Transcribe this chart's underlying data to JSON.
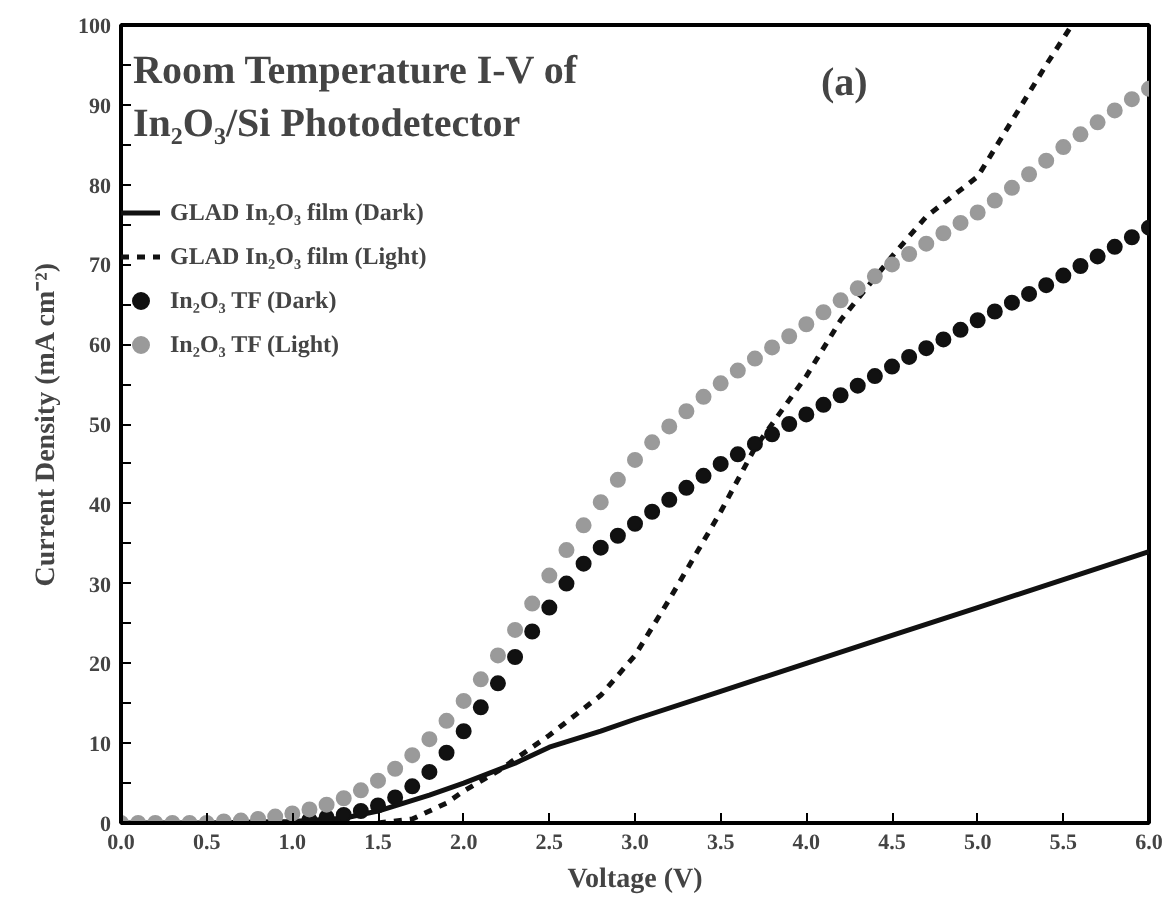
{
  "chart_data": {
    "type": "line",
    "title": "Room Temperature I-V of\nIn₂O₃/Si Photodetector",
    "xlabel": "Voltage (V)",
    "ylabel": "Current Density (mA cm⁻²)",
    "annotations": [
      "(a)"
    ],
    "xlim": [
      0,
      6
    ],
    "ylim": [
      0,
      100
    ],
    "xticks": [
      {
        "value": 0,
        "label": "0.0"
      },
      {
        "value": 0.5,
        "label": "0.5"
      },
      {
        "value": 1,
        "label": "1.0"
      },
      {
        "value": 1.5,
        "label": "1.5"
      },
      {
        "value": 2,
        "label": "2.0"
      },
      {
        "value": 2.5,
        "label": "2.5"
      },
      {
        "value": 3,
        "label": "3.0"
      },
      {
        "value": 3.5,
        "label": "3.5"
      },
      {
        "value": 4,
        "label": "4.0"
      },
      {
        "value": 4.5,
        "label": "4.5"
      },
      {
        "value": 5,
        "label": "5.0"
      },
      {
        "value": 5.5,
        "label": "5.5"
      },
      {
        "value": 6,
        "label": "6.0"
      }
    ],
    "yticks": [
      0,
      {
        "value": 5,
        "label": null
      },
      10,
      {
        "value": 15,
        "label": null
      },
      20,
      {
        "value": 25,
        "label": null
      },
      30,
      {
        "value": 35,
        "label": null
      },
      40,
      {
        "value": 45,
        "label": null
      },
      50,
      {
        "value": 55,
        "label": null
      },
      60,
      {
        "value": 65,
        "label": null
      },
      70,
      {
        "value": 75,
        "label": null
      },
      80,
      {
        "value": 85,
        "label": null
      },
      90,
      {
        "value": 95,
        "label": null
      },
      100
    ],
    "grid": false,
    "legend": "top left",
    "series": [
      {
        "name": "GLAD In₂O₃ film (Dark)",
        "line_style": "solid",
        "color": "#111111",
        "x": [
          0,
          0.5,
          1.0,
          1.3,
          1.5,
          1.8,
          2.0,
          2.3,
          2.5,
          2.8,
          3.0,
          3.5,
          4.0,
          4.5,
          5.0,
          5.5,
          6.0
        ],
        "values": [
          0,
          0,
          0.2,
          0.6,
          1.5,
          3.5,
          5,
          7.5,
          9.5,
          11.5,
          13,
          16.5,
          20,
          23.5,
          27,
          30.5,
          34
        ]
      },
      {
        "name": "GLAD In₂O₃ film (Light)",
        "line_style": "dashed",
        "color": "#111111",
        "x": [
          1.5,
          1.7,
          1.9,
          2.0,
          2.2,
          2.5,
          2.8,
          3.0,
          3.2,
          3.5,
          3.7,
          4.0,
          4.2,
          4.5,
          4.7,
          5.0,
          5.2,
          5.4,
          5.55
        ],
        "values": [
          0,
          0.5,
          2.5,
          4,
          6.5,
          11,
          16,
          21,
          28,
          39,
          47,
          56,
          63,
          71,
          76,
          81,
          88,
          95,
          100
        ]
      },
      {
        "name": "In₂O₃ TF (Dark)",
        "type": "scatter",
        "marker": "circle",
        "color": "#111111",
        "x": [
          1.1,
          1.2,
          1.3,
          1.4,
          1.5,
          1.6,
          1.7,
          1.8,
          1.9,
          2.0,
          2.1,
          2.2,
          2.3,
          2.4,
          2.5,
          2.6,
          2.7,
          2.8,
          2.9,
          3.0,
          3.1,
          3.2,
          3.3,
          3.4,
          3.5,
          3.6,
          3.7,
          3.8,
          3.9,
          4.0,
          4.1,
          4.2,
          4.3,
          4.4,
          4.5,
          4.6,
          4.7,
          4.8,
          4.9,
          5.0,
          5.1,
          5.2,
          5.3,
          5.4,
          5.5,
          5.6,
          5.7,
          5.8,
          5.9,
          6.0
        ],
        "values": [
          0.4,
          0.7,
          1.0,
          1.5,
          2.2,
          3.2,
          4.6,
          6.4,
          8.8,
          11.5,
          14.5,
          17.5,
          20.8,
          24,
          27,
          30,
          32.5,
          34.5,
          36,
          37.5,
          39,
          40.5,
          42,
          43.5,
          45,
          46.2,
          47.5,
          48.7,
          50,
          51.2,
          52.4,
          53.6,
          54.8,
          56,
          57.2,
          58.4,
          59.5,
          60.6,
          61.8,
          63,
          64.1,
          65.2,
          66.3,
          67.4,
          68.6,
          69.8,
          71,
          72.2,
          73.4,
          74.6
        ]
      },
      {
        "name": "In₂O₃ TF (Light)",
        "type": "scatter",
        "marker": "circle",
        "color": "#9a9a9a",
        "x": [
          0,
          0.1,
          0.2,
          0.3,
          0.4,
          0.5,
          0.6,
          0.7,
          0.8,
          0.9,
          1.0,
          1.1,
          1.2,
          1.3,
          1.4,
          1.5,
          1.6,
          1.7,
          1.8,
          1.9,
          2.0,
          2.1,
          2.2,
          2.3,
          2.4,
          2.5,
          2.6,
          2.7,
          2.8,
          2.9,
          3.0,
          3.1,
          3.2,
          3.3,
          3.4,
          3.5,
          3.6,
          3.7,
          3.8,
          3.9,
          4.0,
          4.1,
          4.2,
          4.3,
          4.4,
          4.5,
          4.6,
          4.7,
          4.8,
          4.9,
          5.0,
          5.1,
          5.2,
          5.3,
          5.4,
          5.5,
          5.6,
          5.7,
          5.8,
          5.9,
          6.0
        ],
        "values": [
          0,
          0,
          0,
          0,
          0,
          0,
          0.2,
          0.3,
          0.5,
          0.8,
          1.2,
          1.7,
          2.3,
          3.1,
          4.1,
          5.3,
          6.8,
          8.5,
          10.5,
          12.8,
          15.3,
          18,
          21,
          24.2,
          27.5,
          31,
          34.2,
          37.3,
          40.2,
          43,
          45.5,
          47.7,
          49.7,
          51.6,
          53.4,
          55.1,
          56.7,
          58.2,
          59.6,
          61,
          62.5,
          64,
          65.5,
          67,
          68.5,
          70,
          71.3,
          72.6,
          73.9,
          75.2,
          76.5,
          78,
          79.6,
          81.3,
          83,
          84.7,
          86.3,
          87.8,
          89.3,
          90.7,
          92
        ]
      }
    ]
  }
}
